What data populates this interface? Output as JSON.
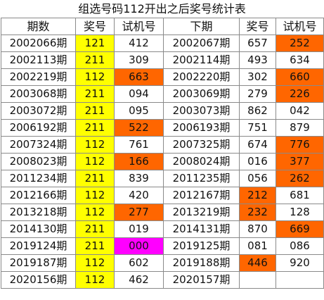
{
  "title": "组选号码112开出之后奖号统计表",
  "headers": [
    "期数",
    "奖号",
    "试机号",
    "下期",
    "奖号",
    "试机号"
  ],
  "colors": {
    "prize_fill": "#ffff00",
    "highlight_orange": "#ff6600",
    "highlight_magenta": "#ff00ff"
  },
  "rows": [
    {
      "period": "2002066期",
      "prize": "121",
      "trial": "412",
      "trial_hl": "",
      "next_period": "2002067期",
      "next_prize": "657",
      "next_prize_hl": "",
      "next_trial": "252",
      "next_trial_hl": "orange"
    },
    {
      "period": "2002113期",
      "prize": "211",
      "trial": "309",
      "trial_hl": "",
      "next_period": "2002114期",
      "next_prize": "493",
      "next_prize_hl": "",
      "next_trial": "634",
      "next_trial_hl": ""
    },
    {
      "period": "2002219期",
      "prize": "112",
      "trial": "663",
      "trial_hl": "orange",
      "next_period": "2002220期",
      "next_prize": "302",
      "next_prize_hl": "",
      "next_trial": "660",
      "next_trial_hl": "orange"
    },
    {
      "period": "2003068期",
      "prize": "211",
      "trial": "094",
      "trial_hl": "",
      "next_period": "2003069期",
      "next_prize": "279",
      "next_prize_hl": "",
      "next_trial": "226",
      "next_trial_hl": "orange"
    },
    {
      "period": "2003072期",
      "prize": "211",
      "trial": "095",
      "trial_hl": "",
      "next_period": "2003073期",
      "next_prize": "862",
      "next_prize_hl": "",
      "next_trial": "042",
      "next_trial_hl": ""
    },
    {
      "period": "2006192期",
      "prize": "211",
      "trial": "522",
      "trial_hl": "orange",
      "next_period": "2006193期",
      "next_prize": "751",
      "next_prize_hl": "",
      "next_trial": "879",
      "next_trial_hl": ""
    },
    {
      "period": "2007324期",
      "prize": "112",
      "trial": "761",
      "trial_hl": "",
      "next_period": "2007325期",
      "next_prize": "674",
      "next_prize_hl": "",
      "next_trial": "776",
      "next_trial_hl": "orange"
    },
    {
      "period": "2008023期",
      "prize": "112",
      "trial": "166",
      "trial_hl": "orange",
      "next_period": "2008024期",
      "next_prize": "016",
      "next_prize_hl": "",
      "next_trial": "377",
      "next_trial_hl": "orange"
    },
    {
      "period": "2011234期",
      "prize": "211",
      "trial": "839",
      "trial_hl": "",
      "next_period": "2011235期",
      "next_prize": "056",
      "next_prize_hl": "",
      "next_trial": "262",
      "next_trial_hl": "orange"
    },
    {
      "period": "2012166期",
      "prize": "112",
      "trial": "420",
      "trial_hl": "",
      "next_period": "2012167期",
      "next_prize": "212",
      "next_prize_hl": "orange",
      "next_trial": "681",
      "next_trial_hl": ""
    },
    {
      "period": "2013218期",
      "prize": "112",
      "trial": "277",
      "trial_hl": "orange",
      "next_period": "2013219期",
      "next_prize": "232",
      "next_prize_hl": "orange",
      "next_trial": "128",
      "next_trial_hl": ""
    },
    {
      "period": "2014130期",
      "prize": "211",
      "trial": "019",
      "trial_hl": "",
      "next_period": "2014131期",
      "next_prize": "870",
      "next_prize_hl": "",
      "next_trial": "669",
      "next_trial_hl": "orange"
    },
    {
      "period": "2019124期",
      "prize": "211",
      "trial": "000",
      "trial_hl": "magenta",
      "next_period": "2019125期",
      "next_prize": "081",
      "next_prize_hl": "",
      "next_trial": "086",
      "next_trial_hl": ""
    },
    {
      "period": "2019187期",
      "prize": "112",
      "trial": "602",
      "trial_hl": "",
      "next_period": "2019188期",
      "next_prize": "446",
      "next_prize_hl": "orange",
      "next_trial": "920",
      "next_trial_hl": ""
    },
    {
      "period": "2020156期",
      "prize": "112",
      "trial": "462",
      "trial_hl": "",
      "next_period": "2020157期",
      "next_prize": "",
      "next_prize_hl": "",
      "next_trial": "",
      "next_trial_hl": ""
    }
  ]
}
